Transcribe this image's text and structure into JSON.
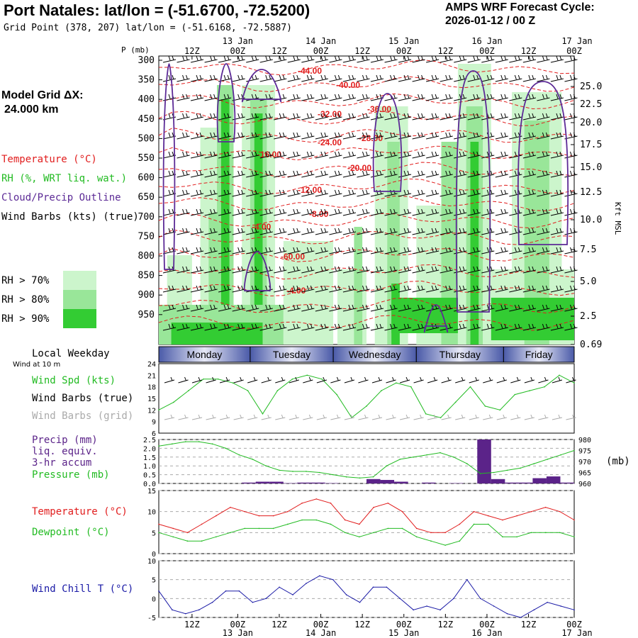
{
  "header": {
    "title": "Port Natales:  lat/lon = (-51.6700, -72.5200)",
    "subtitle": "Grid Point (378, 207) lat/lon = (-51.6168, -72.5887)",
    "cycle_label": "AMPS WRF Forecast Cycle:",
    "cycle_value": "2026-01-12 / 00  Z",
    "grid_label": "Model Grid ΔX:",
    "grid_value": "24.000 km"
  },
  "legend": {
    "temperature": "Temperature (°C)",
    "rh": "RH (%, WRT liq. wat.)",
    "cloud": "Cloud/Precip Outline",
    "wind": "Wind Barbs (kts) (true)",
    "rh70": "RH > 70%",
    "rh80": "RH > 80%",
    "rh90": "RH > 90%"
  },
  "colors": {
    "temp": "#e11d1d",
    "rh70": "#ccf5cc",
    "rh80": "#99e699",
    "rh90": "#33cc33",
    "cloud": "#5c2a96",
    "wind_speed": "#22bb22",
    "precip": "#5b2389",
    "pressure": "#22bb22",
    "dewpoint": "#22bb22",
    "windchill": "#1a1aa6",
    "day_dark": "#4a5aa8"
  },
  "time_axis": {
    "top_hours": [
      "12Z",
      "00Z",
      "12Z",
      "00Z",
      "12Z",
      "00Z",
      "12Z",
      "00Z",
      "12Z",
      "00Z"
    ],
    "top_dates": [
      "13 Jan",
      "14 Jan",
      "15 Jan",
      "16 Jan",
      "17 Jan"
    ],
    "bottom_hours": [
      "12Z",
      "00Z",
      "12Z",
      "00Z",
      "12Z",
      "00Z",
      "12Z",
      "00Z",
      "12Z",
      "00Z"
    ],
    "bottom_dates": [
      "13 Jan",
      "14 Jan",
      "15 Jan",
      "16 Jan",
      "17 Jan"
    ]
  },
  "days": {
    "label": "Local Weekday",
    "sub": "Wind at 10 m",
    "names": [
      "Monday",
      "Tuesday",
      "Wednesday",
      "Thursday",
      "Friday"
    ]
  },
  "chart_data": [
    {
      "type": "heatmap",
      "title": "Time-height cross section",
      "ylabel": "P (mb)",
      "y2label": "Kft MSL",
      "y_ticks": [
        "300",
        "350",
        "400",
        "450",
        "500",
        "550",
        "600",
        "650",
        "700",
        "750",
        "800",
        "850",
        "900",
        "950"
      ],
      "y2_ticks": [
        "25.0",
        "22.5",
        "20.0",
        "17.5",
        "15.0",
        "12.5",
        "10.0",
        "7.5",
        "5.0",
        "2.5",
        "0.69"
      ],
      "contour_labels": [
        "-44.00",
        "-40.00",
        "-36.00",
        "-32.00",
        "-28.00",
        "-24.00",
        "-20.00",
        "-16.00",
        "-12.00",
        "-8.00",
        "-4.00",
        "-60.00",
        "-4.00"
      ]
    },
    {
      "type": "line",
      "series_labels": [
        "Wind Spd (kts)",
        "Wind Barbs (true)",
        "Wind Barbs (grid)"
      ],
      "y_ticks": [
        "24",
        "21",
        "18",
        "15",
        "12",
        "9",
        "6"
      ],
      "ylim": [
        6,
        24
      ],
      "values": [
        12,
        14,
        17,
        20,
        20,
        19,
        17,
        11,
        17,
        20,
        21,
        20,
        16,
        10,
        13,
        17,
        19,
        18,
        11,
        10,
        14,
        18,
        13,
        12,
        16,
        17,
        18,
        21,
        19
      ]
    },
    {
      "type": "bar",
      "series_labels": [
        "Precip (mm)",
        "liq. equiv.",
        "3-hr accum",
        "Pressure (mb)"
      ],
      "y_ticks": [
        "2.5",
        "2.0",
        "1.5",
        "1.0",
        "0.5",
        "0.0"
      ],
      "y2_ticks": [
        "980",
        "975",
        "970",
        "965",
        "960"
      ],
      "y2label": "(mb)",
      "ylim": [
        0,
        2.5
      ],
      "precip": [
        0,
        0,
        0,
        0,
        0,
        0,
        0.05,
        0.1,
        0.1,
        0.02,
        0.05,
        0.05,
        0.02,
        0,
        0,
        0.25,
        0.2,
        0.1,
        0,
        0.05,
        0,
        0.02,
        0,
        2.5,
        0.25,
        0.05,
        0.05,
        0.3,
        0.4,
        0.05
      ],
      "pressure_ylim": [
        960,
        980
      ],
      "pressure": [
        977,
        978,
        979,
        979,
        978,
        976,
        973,
        971,
        968,
        966,
        965.5,
        965.5,
        965,
        964,
        963,
        962.5,
        963,
        968,
        971,
        972,
        973,
        974,
        972,
        969,
        964.5,
        965,
        966,
        967,
        969,
        971,
        973,
        975
      ]
    },
    {
      "type": "line",
      "series_labels": [
        "Temperature (°C)",
        "Dewpoint (°C)"
      ],
      "y_ticks": [
        "15",
        "10",
        "5",
        "0"
      ],
      "ylim": [
        0,
        15
      ],
      "temperature": [
        7,
        6,
        5,
        7,
        9,
        11,
        10,
        9,
        9,
        10,
        12,
        13,
        12,
        8,
        7,
        11,
        12,
        10,
        6,
        5,
        5,
        7,
        10,
        9,
        8,
        9,
        10,
        11,
        10,
        8
      ],
      "dewpoint": [
        5,
        4,
        3,
        3,
        4,
        5,
        6,
        6,
        6,
        7,
        8,
        8,
        7,
        5,
        4,
        5,
        6,
        6,
        4,
        3,
        2,
        3,
        7,
        7,
        4,
        4,
        5,
        5,
        5,
        4
      ]
    },
    {
      "type": "line",
      "series_labels": [
        "Wind Chill T (°C)"
      ],
      "y_ticks": [
        "10",
        "5",
        "0",
        "-5"
      ],
      "ylim": [
        -5,
        10
      ],
      "values": [
        2,
        -3,
        -4,
        -3,
        -1,
        2,
        2,
        -1,
        0,
        3,
        1,
        4,
        6,
        5,
        1,
        -1,
        3,
        3,
        0,
        -3,
        -2,
        -3,
        0,
        5,
        0,
        -2,
        -4,
        -5,
        -3,
        -1,
        -2,
        -3
      ]
    }
  ]
}
